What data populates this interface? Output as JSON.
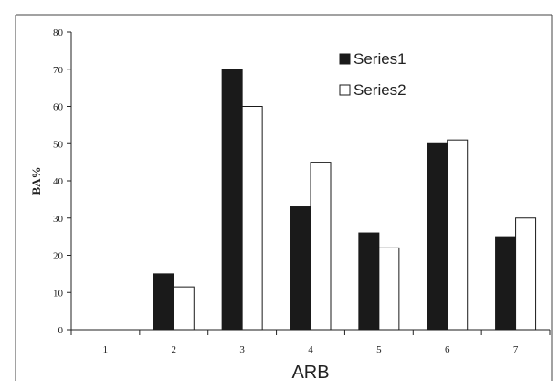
{
  "chart_data": {
    "type": "bar",
    "categories": [
      "1",
      "2",
      "3",
      "4",
      "5",
      "6",
      "7"
    ],
    "series": [
      {
        "name": "Series1",
        "values": [
          0,
          15,
          70,
          33,
          26,
          50,
          25
        ],
        "color": "#1a1a1a"
      },
      {
        "name": "Series2",
        "values": [
          0,
          11.5,
          60,
          45,
          22,
          51,
          30
        ],
        "color": "#ffffff"
      }
    ],
    "xlabel": "ARB",
    "ylabel": "BA%",
    "ylim": [
      0,
      80
    ],
    "yticks": [
      "0",
      "10",
      "20",
      "30",
      "40",
      "50",
      "60",
      "70",
      "80"
    ],
    "grid": false,
    "legend_position": "top-right"
  }
}
